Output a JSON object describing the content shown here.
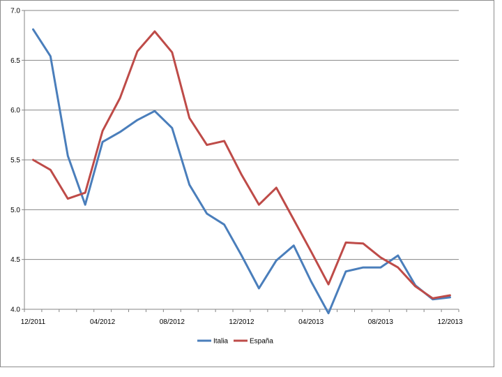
{
  "chart_data": {
    "type": "line",
    "title": "",
    "xlabel": "",
    "ylabel": "",
    "ylim": [
      4.0,
      7.0
    ],
    "y_ticks": [
      "4.0",
      "4.5",
      "5.0",
      "5.5",
      "6.0",
      "6.5",
      "7.0"
    ],
    "x_tick_labels": [
      "12/2011",
      "04/2012",
      "08/2012",
      "12/2012",
      "04/2013",
      "08/2013",
      "12/2013"
    ],
    "x": [
      "12/2011",
      "01/2012",
      "02/2012",
      "03/2012",
      "04/2012",
      "05/2012",
      "06/2012",
      "07/2012",
      "08/2012",
      "09/2012",
      "10/2012",
      "11/2012",
      "12/2012",
      "01/2013",
      "02/2013",
      "03/2013",
      "04/2013",
      "05/2013",
      "06/2013",
      "07/2013",
      "08/2013",
      "09/2013",
      "10/2013",
      "11/2013",
      "12/2013"
    ],
    "grid": "horizontal",
    "legend_position": "bottom",
    "series": [
      {
        "name": "Italia",
        "color": "#4a7ebb",
        "values": [
          6.81,
          6.54,
          5.54,
          5.05,
          5.68,
          5.78,
          5.9,
          5.99,
          5.82,
          5.25,
          4.96,
          4.85,
          4.54,
          4.21,
          4.49,
          4.64,
          4.28,
          3.96,
          4.38,
          4.42,
          4.42,
          4.54,
          4.24,
          4.1,
          4.12
        ]
      },
      {
        "name": "España",
        "color": "#be4b48",
        "values": [
          5.5,
          5.4,
          5.11,
          5.17,
          5.79,
          6.12,
          6.59,
          6.79,
          6.58,
          5.92,
          5.65,
          5.69,
          5.35,
          5.05,
          5.22,
          4.9,
          4.58,
          4.25,
          4.67,
          4.66,
          4.52,
          4.42,
          4.23,
          4.11,
          4.14
        ]
      }
    ]
  }
}
